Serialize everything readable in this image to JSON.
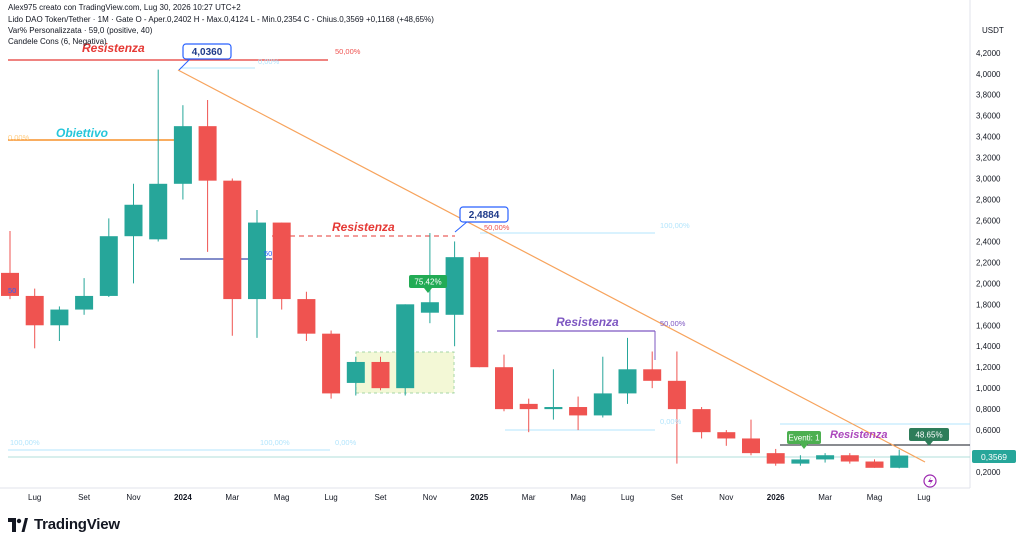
{
  "header": {
    "author_line": "Alex975 creato con TradingView.com, Lug 30, 2026 10:27 UTC+2",
    "symbol_line": "Lido DAO Token/Tether · 1M · Gate  O - Aper.0,2402  H - Max.0,4124  L - Min.0,2354  C - Chius.0,3569  +0,1168 (+48,65%)",
    "indicator1": "Var% Personalizzata · 59,0 (positive, 40)",
    "indicator2": "Candele Cons (6, Negativa)"
  },
  "brand": {
    "name": "TradingView"
  },
  "colors": {
    "up": "#26a69a",
    "down": "#ef5350",
    "trend": "#f7a35c",
    "orange": "#f57c00",
    "purple": "#7e57c2",
    "blue": "#2962ff",
    "cyan": "#26c6da"
  },
  "chart_data": {
    "type": "candlestick",
    "y_unit": "USDT",
    "ylim": [
      0.0,
      4.3
    ],
    "y_ticks": [
      "4,2000",
      "4,0000",
      "3,8000",
      "3,6000",
      "3,4000",
      "3,2000",
      "3,0000",
      "2,8000",
      "2,6000",
      "2,4000",
      "2,2000",
      "2,0000",
      "1,8000",
      "1,6000",
      "1,4000",
      "1,2000",
      "1,0000",
      "0,8000",
      "0,6000",
      "0,4000",
      "0,2000"
    ],
    "y_tick_values": [
      4.2,
      4.0,
      3.8,
      3.6,
      3.4,
      3.2,
      3.0,
      2.8,
      2.6,
      2.4,
      2.2,
      2.0,
      1.8,
      1.6,
      1.4,
      1.2,
      1.0,
      0.8,
      0.6,
      0.4,
      0.2
    ],
    "x_ticks": [
      {
        "label": "Lug",
        "i": 1,
        "bold": false
      },
      {
        "label": "Set",
        "i": 3,
        "bold": false
      },
      {
        "label": "Nov",
        "i": 5,
        "bold": false
      },
      {
        "label": "2024",
        "i": 7,
        "bold": true
      },
      {
        "label": "Mar",
        "i": 9,
        "bold": false
      },
      {
        "label": "Mag",
        "i": 11,
        "bold": false
      },
      {
        "label": "Lug",
        "i": 13,
        "bold": false
      },
      {
        "label": "Set",
        "i": 15,
        "bold": false
      },
      {
        "label": "Nov",
        "i": 17,
        "bold": false
      },
      {
        "label": "2025",
        "i": 19,
        "bold": true
      },
      {
        "label": "Mar",
        "i": 21,
        "bold": false
      },
      {
        "label": "Mag",
        "i": 23,
        "bold": false
      },
      {
        "label": "Lug",
        "i": 25,
        "bold": false
      },
      {
        "label": "Set",
        "i": 27,
        "bold": false
      },
      {
        "label": "Nov",
        "i": 29,
        "bold": false
      },
      {
        "label": "2026",
        "i": 31,
        "bold": true
      },
      {
        "label": "Mar",
        "i": 33,
        "bold": false
      },
      {
        "label": "Mag",
        "i": 35,
        "bold": false
      },
      {
        "label": "Lug",
        "i": 37,
        "bold": false
      }
    ],
    "candles": [
      {
        "o": 2.1,
        "h": 2.5,
        "l": 1.85,
        "c": 1.88
      },
      {
        "o": 1.88,
        "h": 1.95,
        "l": 1.38,
        "c": 1.6
      },
      {
        "o": 1.6,
        "h": 1.78,
        "l": 1.45,
        "c": 1.75
      },
      {
        "o": 1.75,
        "h": 2.05,
        "l": 1.7,
        "c": 1.88
      },
      {
        "o": 1.88,
        "h": 2.62,
        "l": 1.87,
        "c": 2.45
      },
      {
        "o": 2.45,
        "h": 2.95,
        "l": 2.0,
        "c": 2.75
      },
      {
        "o": 2.42,
        "h": 4.04,
        "l": 2.4,
        "c": 2.95
      },
      {
        "o": 2.95,
        "h": 3.7,
        "l": 2.8,
        "c": 3.5
      },
      {
        "o": 3.5,
        "h": 3.75,
        "l": 2.3,
        "c": 2.98
      },
      {
        "o": 2.98,
        "h": 3.0,
        "l": 1.5,
        "c": 1.85
      },
      {
        "o": 1.85,
        "h": 2.7,
        "l": 1.48,
        "c": 2.58
      },
      {
        "o": 2.58,
        "h": 2.58,
        "l": 1.75,
        "c": 1.85
      },
      {
        "o": 1.85,
        "h": 1.92,
        "l": 1.45,
        "c": 1.52
      },
      {
        "o": 1.52,
        "h": 1.55,
        "l": 0.9,
        "c": 0.95
      },
      {
        "o": 1.05,
        "h": 1.3,
        "l": 0.93,
        "c": 1.25
      },
      {
        "o": 1.25,
        "h": 1.3,
        "l": 0.98,
        "c": 1.0
      },
      {
        "o": 1.0,
        "h": 1.8,
        "l": 0.93,
        "c": 1.8
      },
      {
        "o": 1.72,
        "h": 2.48,
        "l": 1.62,
        "c": 1.82
      },
      {
        "o": 1.7,
        "h": 2.4,
        "l": 1.4,
        "c": 2.25
      },
      {
        "o": 2.25,
        "h": 2.3,
        "l": 1.2,
        "c": 1.2
      },
      {
        "o": 1.2,
        "h": 1.32,
        "l": 0.78,
        "c": 0.8
      },
      {
        "o": 0.85,
        "h": 0.9,
        "l": 0.58,
        "c": 0.8
      },
      {
        "o": 0.8,
        "h": 1.18,
        "l": 0.7,
        "c": 0.82
      },
      {
        "o": 0.82,
        "h": 0.92,
        "l": 0.6,
        "c": 0.74
      },
      {
        "o": 0.74,
        "h": 1.3,
        "l": 0.72,
        "c": 0.95
      },
      {
        "o": 0.95,
        "h": 1.48,
        "l": 0.85,
        "c": 1.18
      },
      {
        "o": 1.18,
        "h": 1.35,
        "l": 1.0,
        "c": 1.07
      },
      {
        "o": 1.07,
        "h": 1.35,
        "l": 0.28,
        "c": 0.8
      },
      {
        "o": 0.8,
        "h": 0.82,
        "l": 0.52,
        "c": 0.58
      },
      {
        "o": 0.58,
        "h": 0.6,
        "l": 0.45,
        "c": 0.52
      },
      {
        "o": 0.52,
        "h": 0.7,
        "l": 0.36,
        "c": 0.38
      },
      {
        "o": 0.38,
        "h": 0.42,
        "l": 0.26,
        "c": 0.28
      },
      {
        "o": 0.28,
        "h": 0.36,
        "l": 0.26,
        "c": 0.32
      },
      {
        "o": 0.32,
        "h": 0.38,
        "l": 0.29,
        "c": 0.36
      },
      {
        "o": 0.36,
        "h": 0.38,
        "l": 0.28,
        "c": 0.3
      },
      {
        "o": 0.3,
        "h": 0.32,
        "l": 0.24,
        "c": 0.24
      },
      {
        "o": 0.2402,
        "h": 0.4124,
        "l": 0.2354,
        "c": 0.3569
      }
    ],
    "last_price_label": "0,3569",
    "annotations": {
      "resistenza_top": "Resistenza",
      "obiettivo": "Obiettivo",
      "resistenza_mid": "Resistenza",
      "resistenza_2025": "Resistenza",
      "resistenza_low": "Resistenza",
      "callout_high": "4,0360",
      "callout_2025": "2,4884",
      "badge_75": "75.42%",
      "badge_48": "48.65%",
      "badge_eventi": "Eventi: 1",
      "pct_50_a": "50,00%",
      "pct_0_a": "0,00%",
      "pct_50_b": "50,00%",
      "pct_100_b": "100,00%",
      "pct_50_c": "50,00%",
      "pct_0_c": "0,00%",
      "pct_100_d": "100,00%",
      "pct_100_e": "100,00%",
      "pct_0_e": "0,00%",
      "pct_50_left": "50",
      "pct_0_left": "0,00%",
      "pct_50_mid": "50"
    }
  }
}
